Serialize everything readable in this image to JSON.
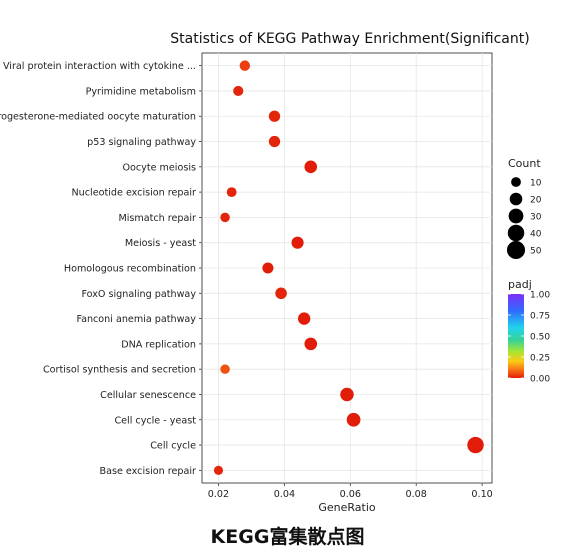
{
  "chart_data": {
    "type": "scatter",
    "title": "Statistics of KEGG Pathway Enrichment(Significant)",
    "xlabel": "GeneRatio",
    "ylabel": "",
    "xlim": [
      0.015,
      0.103
    ],
    "xticks": [
      "0.02",
      "0.04",
      "0.06",
      "0.08",
      "0.10"
    ],
    "xtick_values": [
      0.02,
      0.04,
      0.06,
      0.08,
      0.1
    ],
    "grid": true,
    "legend_position": "right",
    "size_legend": {
      "title": "Count",
      "values": [
        10,
        20,
        30,
        40,
        50
      ]
    },
    "color_legend": {
      "title": "padj",
      "ticks": [
        "1.00",
        "0.75",
        "0.50",
        "0.25",
        "0.00"
      ],
      "tick_values": [
        1.0,
        0.75,
        0.5,
        0.25,
        0.0
      ],
      "colors": [
        "#7b2ff7",
        "#2f6bff",
        "#22d3ee",
        "#34d399",
        "#a3e635",
        "#facc15",
        "#f97316",
        "#e11d0a"
      ]
    },
    "categories": [
      "Viral protein interaction with cytokine ...",
      "Pyrimidine metabolism",
      "Progesterone-mediated oocyte maturation",
      "p53 signaling pathway",
      "Oocyte meiosis",
      "Nucleotide excision repair",
      "Mismatch repair",
      "Meiosis - yeast",
      "Homologous recombination",
      "FoxO signaling pathway",
      "Fanconi anemia pathway",
      "DNA replication",
      "Cortisol synthesis and secretion",
      "Cellular senescence",
      "Cell cycle - yeast",
      "Cell cycle",
      "Base excision repair"
    ],
    "points": [
      {
        "category": "Viral protein interaction with cytokine ...",
        "x": 0.028,
        "count": 12,
        "padj": 0.04
      },
      {
        "category": "Pyrimidine metabolism",
        "x": 0.026,
        "count": 11,
        "padj": 0.01
      },
      {
        "category": "Progesterone-mediated oocyte maturation",
        "x": 0.037,
        "count": 15,
        "padj": 0.01
      },
      {
        "category": "p53 signaling pathway",
        "x": 0.037,
        "count": 15,
        "padj": 0.01
      },
      {
        "category": "Oocyte meiosis",
        "x": 0.048,
        "count": 20,
        "padj": 0.0
      },
      {
        "category": "Nucleotide excision repair",
        "x": 0.024,
        "count": 10,
        "padj": 0.01
      },
      {
        "category": "Mismatch repair",
        "x": 0.022,
        "count": 9,
        "padj": 0.01
      },
      {
        "category": "Meiosis - yeast",
        "x": 0.044,
        "count": 18,
        "padj": 0.0
      },
      {
        "category": "Homologous recombination",
        "x": 0.035,
        "count": 14,
        "padj": 0.0
      },
      {
        "category": "FoxO signaling pathway",
        "x": 0.039,
        "count": 16,
        "padj": 0.01
      },
      {
        "category": "Fanconi anemia pathway",
        "x": 0.046,
        "count": 19,
        "padj": 0.0
      },
      {
        "category": "DNA replication",
        "x": 0.048,
        "count": 20,
        "padj": 0.0
      },
      {
        "category": "Cortisol synthesis and secretion",
        "x": 0.022,
        "count": 9,
        "padj": 0.06
      },
      {
        "category": "Cellular senescence",
        "x": 0.059,
        "count": 24,
        "padj": 0.0
      },
      {
        "category": "Cell cycle - yeast",
        "x": 0.061,
        "count": 25,
        "padj": 0.0
      },
      {
        "category": "Cell cycle",
        "x": 0.098,
        "count": 40,
        "padj": 0.0
      },
      {
        "category": "Base excision repair",
        "x": 0.02,
        "count": 8,
        "padj": 0.01
      }
    ]
  },
  "caption": "KEGG富集散点图"
}
